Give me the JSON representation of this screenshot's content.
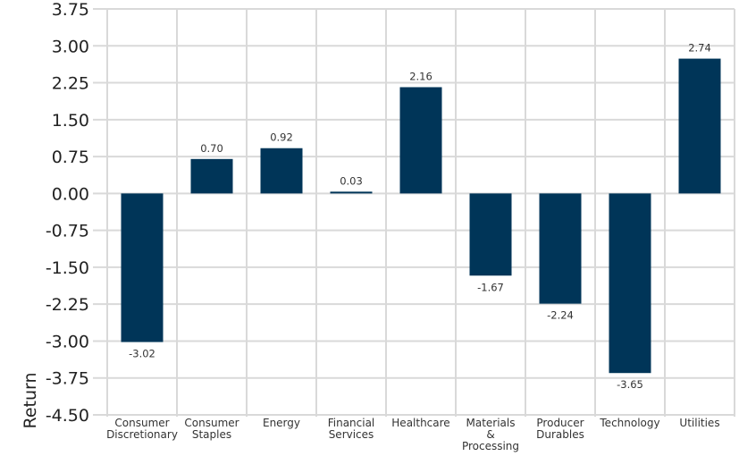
{
  "chart_data": {
    "type": "bar",
    "title": "",
    "xlabel": "",
    "ylabel": "Return",
    "categories": [
      [
        "Consumer",
        "Discretionary"
      ],
      [
        "Consumer",
        "Staples"
      ],
      [
        "Energy"
      ],
      [
        "Financial",
        "Services"
      ],
      [
        "Healthcare"
      ],
      [
        "Materials",
        "&",
        "Processing"
      ],
      [
        "Producer",
        "Durables"
      ],
      [
        "Technology"
      ],
      [
        "Utilities"
      ]
    ],
    "values": [
      -3.02,
      0.7,
      0.92,
      0.03,
      2.16,
      -1.67,
      -2.24,
      -3.65,
      2.74
    ],
    "data_labels": [
      "-3.02",
      "0.70",
      "0.92",
      "0.03",
      "2.16",
      "-1.67",
      "-2.24",
      "-3.65",
      "2.74"
    ],
    "yticks": [
      "3.75",
      "3.00",
      "2.25",
      "1.50",
      "0.75",
      "0.00",
      "-0.75",
      "-1.50",
      "-2.25",
      "-3.00",
      "-3.75",
      "-4.50"
    ],
    "ylim": [
      -4.5,
      3.75
    ],
    "grid": true,
    "colors": {
      "bar": "#003558",
      "grid": "#d9d9d9"
    }
  }
}
